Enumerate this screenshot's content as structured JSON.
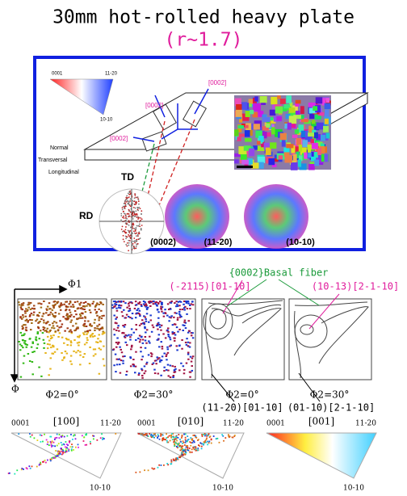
{
  "header": {
    "title": "30mm hot-rolled heavy plate",
    "subtitle": "(r~1.7)"
  },
  "schematic": {
    "color_key": [
      "0001",
      "11-20",
      "10-10"
    ],
    "directions": [
      "[0002]",
      "[0002]",
      "[0002]"
    ],
    "axes": [
      "Normal",
      "Transversal",
      "Longitudinal"
    ],
    "td": "TD",
    "rd": "RD",
    "pole_figures": [
      "(0002)",
      "(11-20)",
      "(10-10)"
    ]
  },
  "odf": {
    "axis_x": "Φ1",
    "axis_y": "Φ",
    "sections": [
      "Φ2=0°",
      "Φ2=30°",
      "Φ2=0°",
      "Φ2=30°"
    ],
    "orientations": [
      "(11-20)[01-10]",
      "(01-10)[2-1-10]"
    ],
    "fiber": "{0002}Basal fiber",
    "peaks": [
      "(-2115)[01-10]",
      "(10-13)[2-1-10]"
    ]
  },
  "ipf": [
    {
      "corner_left": "0001",
      "direction": "[100]",
      "corner_right": "11-20",
      "corner_bottom": "10-10"
    },
    {
      "corner_left": "0001",
      "direction": "[010]",
      "corner_right": "11-20",
      "corner_bottom": "10-10"
    },
    {
      "corner_left": "0001",
      "direction": "[001]",
      "corner_right": "11-20",
      "corner_bottom": "10-10"
    }
  ]
}
